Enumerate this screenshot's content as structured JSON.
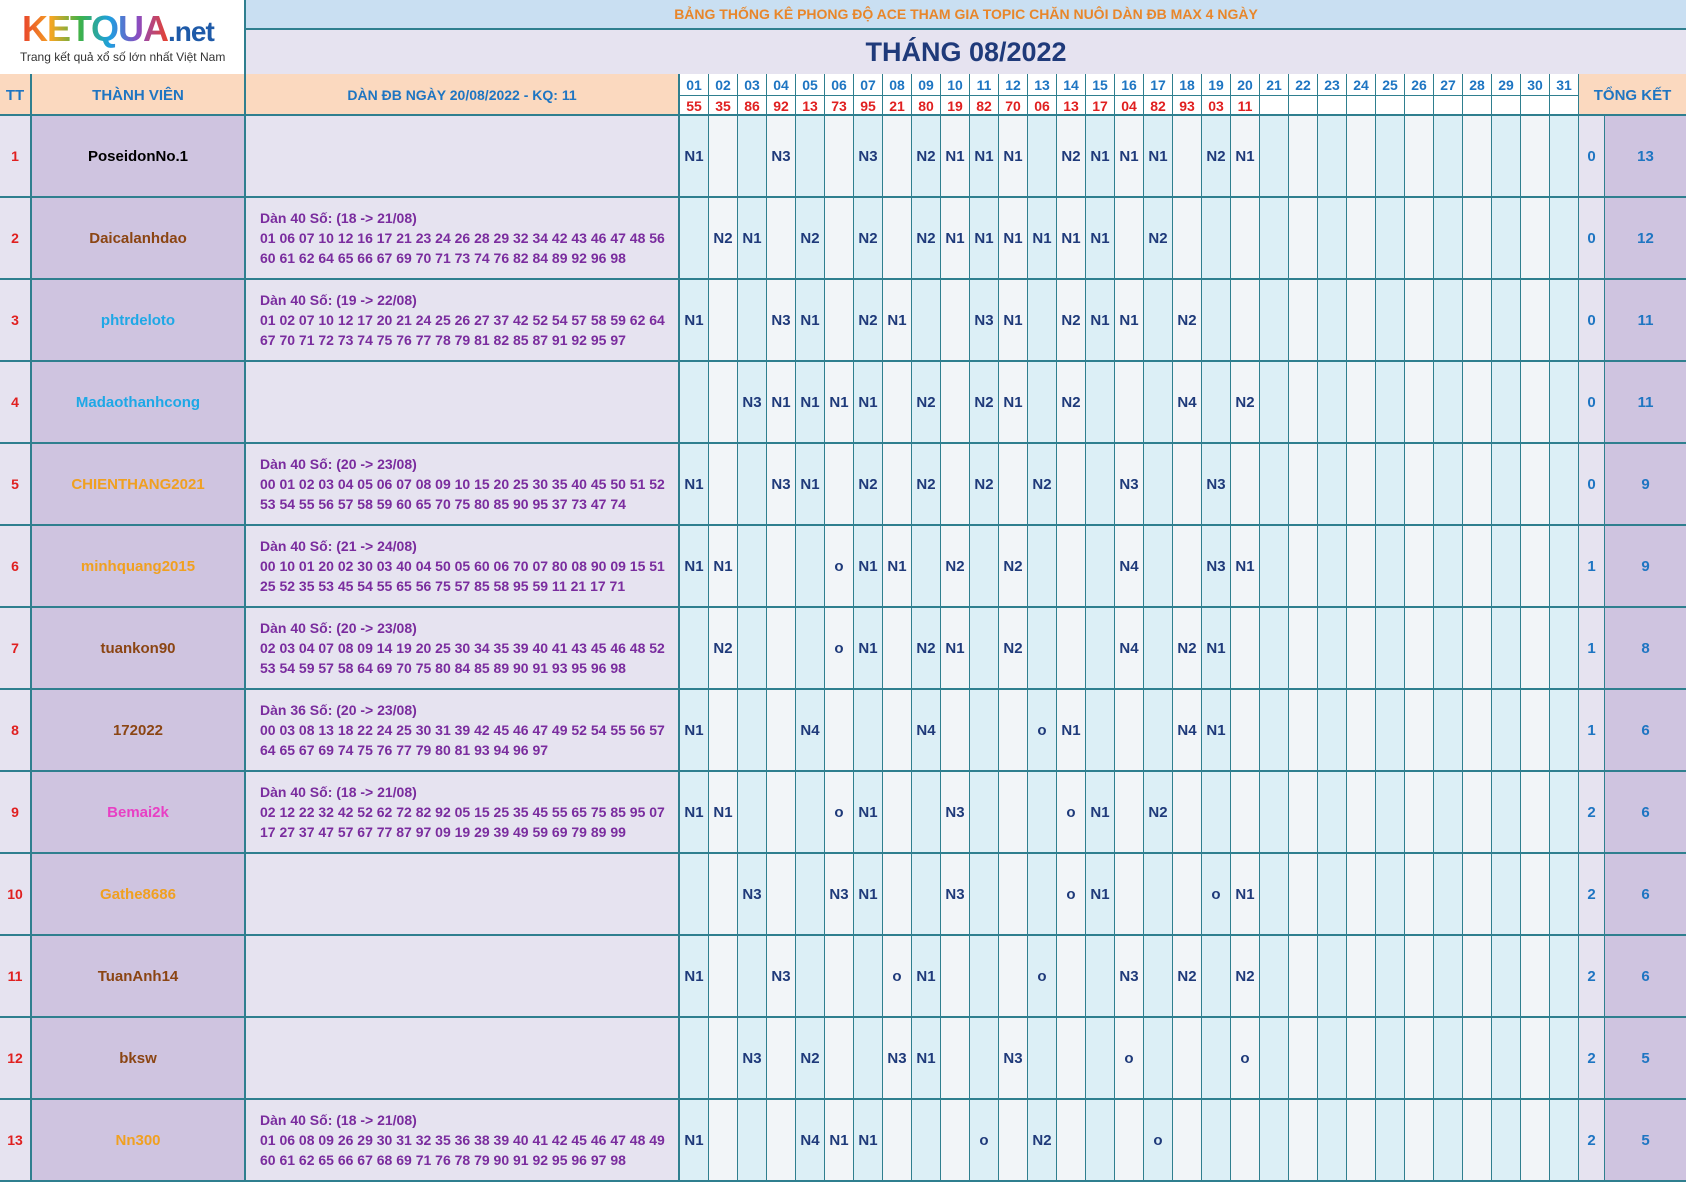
{
  "logo": {
    "brand_ket": "KETQUA",
    "brand_net": ".net",
    "tagline": "Trang kết quả xổ số lớn nhất Việt Nam"
  },
  "banner": "BẢNG THỐNG KÊ PHONG ĐỘ ACE THAM GIA TOPIC CHĂN NUÔI DÀN ĐB MAX 4 NGÀY",
  "month_title": "THÁNG 08/2022",
  "headers": {
    "tt": "TT",
    "member": "THÀNH VIÊN",
    "dan": "DÀN ĐB NGÀY 20/08/2022 - KQ: 11",
    "total": "TỔNG KẾT"
  },
  "days": [
    "01",
    "02",
    "03",
    "04",
    "05",
    "06",
    "07",
    "08",
    "09",
    "10",
    "11",
    "12",
    "13",
    "14",
    "15",
    "16",
    "17",
    "18",
    "19",
    "20",
    "21",
    "22",
    "23",
    "24",
    "25",
    "26",
    "27",
    "28",
    "29",
    "30",
    "31"
  ],
  "results": [
    "55",
    "35",
    "86",
    "92",
    "13",
    "73",
    "95",
    "21",
    "80",
    "19",
    "82",
    "70",
    "06",
    "13",
    "17",
    "04",
    "82",
    "93",
    "03",
    "11",
    "",
    "",
    "",
    "",
    "",
    "",
    "",
    "",
    "",
    "",
    ""
  ],
  "rows": [
    {
      "tt": "1",
      "name": "PoseidonNo.1",
      "color": "#000000",
      "dan_title": "",
      "dan_line1": "",
      "dan_line2": "",
      "cells": {
        "1": "N1",
        "4": "N3",
        "7": "N3",
        "9": "N2",
        "10": "N1",
        "11": "N1",
        "12": "N1",
        "14": "N2",
        "15": "N1",
        "16": "N1",
        "17": "N1",
        "19": "N2",
        "20": "N1"
      },
      "sum1": "0",
      "sum2": "13"
    },
    {
      "tt": "2",
      "name": "Daicalanhdao",
      "color": "#8b4513",
      "dan_title": "Dàn 40 Số: (18 -> 21/08)",
      "dan_line1": "01 06 07 10 12 16 17 21 23 24 26 28 29 32 34 42 43 46 47 48 56",
      "dan_line2": "60 61 62 64 65 66 67 69 70 71 73 74 76 82 84 89 92 96 98",
      "cells": {
        "2": "N2",
        "3": "N1",
        "5": "N2",
        "7": "N2",
        "9": "N2",
        "10": "N1",
        "11": "N1",
        "12": "N1",
        "13": "N1",
        "14": "N1",
        "15": "N1",
        "17": "N2"
      },
      "sum1": "0",
      "sum2": "12"
    },
    {
      "tt": "3",
      "name": "phtrdeloto",
      "color": "#1ea8e6",
      "dan_title": "Dàn 40 Số: (19 -> 22/08)",
      "dan_line1": "01 02 07 10 12 17 20 21 24 25 26 27 37 42 52 54 57 58 59 62 64",
      "dan_line2": "67 70 71 72 73 74 75 76 77 78 79 81 82 85 87 91 92 95 97",
      "cells": {
        "1": "N1",
        "4": "N3",
        "5": "N1",
        "7": "N2",
        "8": "N1",
        "11": "N3",
        "12": "N1",
        "14": "N2",
        "15": "N1",
        "16": "N1",
        "18": "N2"
      },
      "sum1": "0",
      "sum2": "11"
    },
    {
      "tt": "4",
      "name": "Madaothanhcong",
      "color": "#1ea8e6",
      "dan_title": "",
      "dan_line1": "",
      "dan_line2": "",
      "cells": {
        "3": "N3",
        "4": "N1",
        "5": "N1",
        "6": "N1",
        "7": "N1",
        "9": "N2",
        "11": "N2",
        "12": "N1",
        "14": "N2",
        "18": "N4",
        "20": "N2"
      },
      "sum1": "0",
      "sum2": "11"
    },
    {
      "tt": "5",
      "name": "CHIENTHANG2021",
      "color": "#f0a020",
      "dan_title": "Dàn 40 Số: (20 -> 23/08)",
      "dan_line1": "00 01 02 03 04 05 06 07 08 09 10 15 20 25 30 35 40 45 50 51 52",
      "dan_line2": "53 54 55 56 57 58 59 60 65 70 75 80 85 90 95 37 73 47 74",
      "cells": {
        "1": "N1",
        "4": "N3",
        "5": "N1",
        "7": "N2",
        "9": "N2",
        "11": "N2",
        "13": "N2",
        "16": "N3",
        "19": "N3"
      },
      "sum1": "0",
      "sum2": "9"
    },
    {
      "tt": "6",
      "name": "minhquang2015",
      "color": "#f0a020",
      "dan_title": "Dàn 40 Số: (21 -> 24/08)",
      "dan_line1": "00 10 01 20 02 30 03 40 04 50 05 60 06 70 07 80 08 90 09 15 51",
      "dan_line2": "25 52 35 53 45 54 55 65 56 75 57 85 58 95 59 11 21 17 71",
      "cells": {
        "1": "N1",
        "2": "N1",
        "6": "o",
        "7": "N1",
        "8": "N1",
        "10": "N2",
        "12": "N2",
        "16": "N4",
        "19": "N3",
        "20": "N1"
      },
      "sum1": "1",
      "sum2": "9"
    },
    {
      "tt": "7",
      "name": "tuankon90",
      "color": "#8b4513",
      "dan_title": "Dàn 40 Số: (20 -> 23/08)",
      "dan_line1": "02 03 04 07 08 09 14 19 20 25 30 34 35 39 40 41 43 45 46 48 52",
      "dan_line2": "53 54 59 57 58 64 69 70 75 80 84 85 89 90 91 93 95 96 98",
      "cells": {
        "2": "N2",
        "6": "o",
        "7": "N1",
        "9": "N2",
        "10": "N1",
        "12": "N2",
        "16": "N4",
        "18": "N2",
        "19": "N1"
      },
      "sum1": "1",
      "sum2": "8"
    },
    {
      "tt": "8",
      "name": "172022",
      "color": "#8b4513",
      "dan_title": "Dàn 36 Số: (20 -> 23/08)",
      "dan_line1": "00 03 08 13 18 22 24 25 30 31 39 42 45 46 47 49 52 54 55 56 57",
      "dan_line2": "64 65 67 69 74 75 76 77 79 80 81 93 94 96 97",
      "cells": {
        "1": "N1",
        "5": "N4",
        "9": "N4",
        "13": "o",
        "14": "N1",
        "18": "N4",
        "19": "N1"
      },
      "sum1": "1",
      "sum2": "6"
    },
    {
      "tt": "9",
      "name": "Bemai2k",
      "color": "#e83fc4",
      "dan_title": "Dàn 40 Số: (18 -> 21/08)",
      "dan_line1": "02 12 22 32 42 52 62 72 82 92 05 15 25 35 45 55 65 75 85 95 07",
      "dan_line2": "17 27 37 47 57 67 77 87 97 09 19 29 39 49 59 69 79 89 99",
      "cells": {
        "1": "N1",
        "2": "N1",
        "6": "o",
        "7": "N1",
        "10": "N3",
        "14": "o",
        "15": "N1",
        "17": "N2"
      },
      "sum1": "2",
      "sum2": "6"
    },
    {
      "tt": "10",
      "name": "Gathe8686",
      "color": "#f0a020",
      "dan_title": "",
      "dan_line1": "",
      "dan_line2": "",
      "cells": {
        "3": "N3",
        "6": "N3",
        "7": "N1",
        "10": "N3",
        "14": "o",
        "15": "N1",
        "19": "o",
        "20": "N1"
      },
      "sum1": "2",
      "sum2": "6"
    },
    {
      "tt": "11",
      "name": "TuanAnh14",
      "color": "#8b4513",
      "dan_title": "",
      "dan_line1": "",
      "dan_line2": "",
      "cells": {
        "1": "N1",
        "4": "N3",
        "8": "o",
        "9": "N1",
        "13": "o",
        "16": "N3",
        "18": "N2",
        "20": "N2"
      },
      "sum1": "2",
      "sum2": "6"
    },
    {
      "tt": "12",
      "name": "bksw",
      "color": "#8b4513",
      "dan_title": "",
      "dan_line1": "",
      "dan_line2": "",
      "cells": {
        "3": "N3",
        "5": "N2",
        "8": "N3",
        "9": "N1",
        "12": "N3",
        "16": "o",
        "20": "o"
      },
      "sum1": "2",
      "sum2": "5"
    },
    {
      "tt": "13",
      "name": "Nn300",
      "color": "#f0a020",
      "dan_title": "Dàn 40 Số: (18 -> 21/08)",
      "dan_line1": "01 06 08 09 26 29 30 31 32 35 36 38 39 40 41 42 45 46 47 48 49",
      "dan_line2": "60 61 62 65 66 67 68 69 71 76 78 79 90 91 92 95 96 97 98",
      "cells": {
        "1": "N1",
        "5": "N4",
        "6": "N1",
        "7": "N1",
        "11": "o",
        "13": "N2",
        "17": "o"
      },
      "sum1": "2",
      "sum2": "5"
    }
  ]
}
